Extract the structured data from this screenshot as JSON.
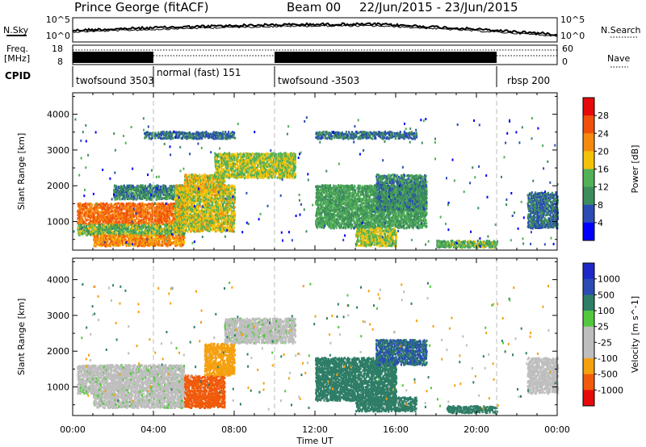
{
  "header": {
    "station": "Prince George (fitACF)",
    "beam": "Beam 00",
    "date_range": "22/Jun/2015 - 23/Jun/2015"
  },
  "top_panels": {
    "nsky_label": "N.Sky",
    "nsky_ticks": [
      "10^5",
      "10^0"
    ],
    "nsearch_label": "N.Search",
    "nsearch_ticks": [
      "10^5",
      "10^0"
    ],
    "freq_label_line1": "Freq.",
    "freq_label_line2": "[MHz]",
    "freq_ticks": [
      "18",
      "8"
    ],
    "nave_label": "Nave",
    "nave_ticks": [
      "60",
      "0"
    ],
    "cpid_label": "CPID"
  },
  "cpid_segments": [
    {
      "label": "twofsound 3503",
      "start": 0.0,
      "end": 4.0
    },
    {
      "label": "normal (fast) 151",
      "start": 4.0,
      "end": 10.0
    },
    {
      "label": "twofsound -3503",
      "start": 10.0,
      "end": 21.0
    },
    {
      "label": "rbsp 200",
      "start": 21.0,
      "end": 24.0
    }
  ],
  "freq_solid_ranges": [
    [
      0.0,
      4.0
    ],
    [
      10.0,
      21.0
    ]
  ],
  "colors": {
    "power": [
      "#0000ff",
      "#2a4cb4",
      "#3d8c5c",
      "#52b056",
      "#f2c20a",
      "#f58a0f",
      "#f0500c",
      "#e60a0a"
    ],
    "velocity": [
      "#e60a0a",
      "#f05a0a",
      "#f5a00f",
      "#bebebe",
      "#bebebe",
      "#52c83c",
      "#2e7d66",
      "#2a4cb4",
      "#1e28c8"
    ]
  },
  "chart_data": [
    {
      "type": "heatmap",
      "title": "",
      "xlabel": "Time UT",
      "ylabel": "Slant Range [km]",
      "xlim": [
        0,
        24
      ],
      "ylim": [
        200,
        4600
      ],
      "x_ticks": [
        "00:00",
        "04:00",
        "08:00",
        "12:00",
        "16:00",
        "20:00",
        "00:00"
      ],
      "y_ticks": [
        1000,
        2000,
        3000,
        4000
      ],
      "colorbar": {
        "label": "Power [dB]",
        "ticks": [
          "4",
          "8",
          "12",
          "16",
          "20",
          "24",
          "28"
        ],
        "range": [
          0,
          30
        ]
      },
      "regions": [
        {
          "t": [
            0.2,
            5.5
          ],
          "r": [
            900,
            1500
          ],
          "v": 24
        },
        {
          "t": [
            0.2,
            5.5
          ],
          "r": [
            600,
            900
          ],
          "v": 14
        },
        {
          "t": [
            1.0,
            5.5
          ],
          "r": [
            300,
            600
          ],
          "v": 22
        },
        {
          "t": [
            2.0,
            5.8
          ],
          "r": [
            1600,
            2000
          ],
          "v": 10
        },
        {
          "t": [
            5.0,
            8.0
          ],
          "r": [
            700,
            2000
          ],
          "v": 17
        },
        {
          "t": [
            5.5,
            7.5
          ],
          "r": [
            1800,
            2300
          ],
          "v": 18
        },
        {
          "t": [
            7.0,
            11.0
          ],
          "r": [
            2200,
            2900
          ],
          "v": 16
        },
        {
          "t": [
            3.5,
            8.0
          ],
          "r": [
            3300,
            3500
          ],
          "v": 8
        },
        {
          "t": [
            12.0,
            17.0
          ],
          "r": [
            3300,
            3500
          ],
          "v": 8
        },
        {
          "t": [
            12.0,
            17.5
          ],
          "r": [
            800,
            2000
          ],
          "v": 12
        },
        {
          "t": [
            14.0,
            16.0
          ],
          "r": [
            300,
            800
          ],
          "v": 16
        },
        {
          "t": [
            15.0,
            17.5
          ],
          "r": [
            1300,
            2300
          ],
          "v": 10
        },
        {
          "t": [
            18.0,
            21.0
          ],
          "r": [
            250,
            450
          ],
          "v": 14
        },
        {
          "t": [
            22.5,
            24.0
          ],
          "r": [
            800,
            1800
          ],
          "v": 8
        }
      ]
    },
    {
      "type": "heatmap",
      "title": "",
      "xlabel": "Time UT",
      "ylabel": "Slant Range [km]",
      "xlim": [
        0,
        24
      ],
      "ylim": [
        200,
        4600
      ],
      "x_ticks": [
        "00:00",
        "04:00",
        "08:00",
        "12:00",
        "16:00",
        "20:00",
        "00:00"
      ],
      "y_ticks": [
        1000,
        2000,
        3000,
        4000
      ],
      "colorbar": {
        "label": "Velocity [m s^-1]",
        "ticks": [
          "-1000",
          "-500",
          "-100",
          "-25",
          "25",
          "100",
          "500",
          "1000"
        ],
        "range": [
          -1200,
          1200
        ]
      },
      "regions": [
        {
          "t": [
            0.2,
            5.5
          ],
          "r": [
            800,
            1600
          ],
          "v": 0
        },
        {
          "t": [
            1.0,
            5.5
          ],
          "r": [
            400,
            800
          ],
          "v": 0
        },
        {
          "t": [
            5.5,
            7.5
          ],
          "r": [
            400,
            1300
          ],
          "v": -600
        },
        {
          "t": [
            6.5,
            8.0
          ],
          "r": [
            1300,
            2200
          ],
          "v": -200
        },
        {
          "t": [
            7.5,
            11.0
          ],
          "r": [
            2200,
            2900
          ],
          "v": 0
        },
        {
          "t": [
            12.0,
            16.0
          ],
          "r": [
            600,
            1800
          ],
          "v": 300
        },
        {
          "t": [
            14.0,
            17.0
          ],
          "r": [
            300,
            700
          ],
          "v": 150
        },
        {
          "t": [
            15.0,
            17.5
          ],
          "r": [
            1600,
            2300
          ],
          "v": 500
        },
        {
          "t": [
            18.5,
            21.0
          ],
          "r": [
            250,
            450
          ],
          "v": 200
        },
        {
          "t": [
            22.5,
            24.0
          ],
          "r": [
            800,
            1800
          ],
          "v": -50
        }
      ]
    }
  ]
}
